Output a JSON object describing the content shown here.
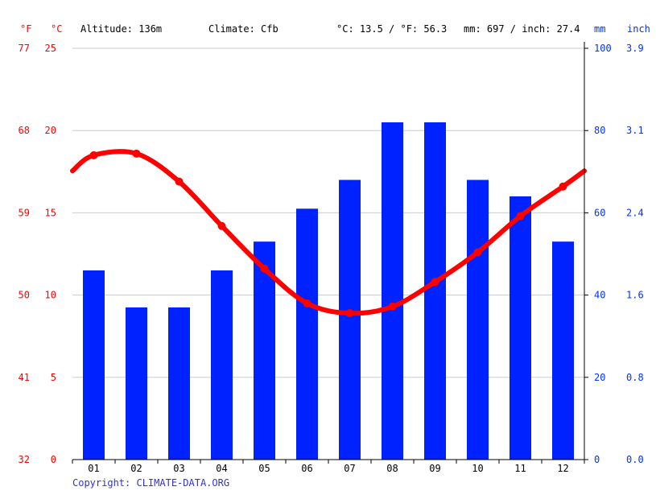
{
  "header": {
    "unit_f": "°F",
    "unit_c": "°C",
    "altitude": "Altitude: 136m",
    "climate": "Climate: Cfb",
    "temp_avg": "°C: 13.5 / °F: 56.3",
    "precip_total": "mm: 697 / inch: 27.4",
    "unit_mm": "mm",
    "unit_inch": "inch"
  },
  "footer": {
    "copyright": "Copyright: CLIMATE-DATA.ORG"
  },
  "colors": {
    "temperature": "#ff0000",
    "precipitation": "#0022ff",
    "grid": "#cccccc"
  },
  "chart_data": {
    "type": "bar",
    "categories": [
      "01",
      "02",
      "03",
      "04",
      "05",
      "06",
      "07",
      "08",
      "09",
      "10",
      "11",
      "12"
    ],
    "series": [
      {
        "type": "bar",
        "axis": "right",
        "values": [
          46,
          37,
          37,
          46,
          53,
          61,
          68,
          82,
          82,
          68,
          64,
          53
        ]
      },
      {
        "type": "line",
        "axis": "left",
        "values": [
          18.5,
          18.6,
          16.9,
          14.2,
          11.6,
          9.5,
          8.9,
          9.3,
          10.8,
          12.6,
          14.8,
          16.6
        ]
      }
    ],
    "y_left_f_ticks": [
      "32",
      "41",
      "50",
      "59",
      "68",
      "77"
    ],
    "y_left_c_ticks": [
      "0",
      "5",
      "10",
      "15",
      "20",
      "25"
    ],
    "y_left_range": [
      0,
      25
    ],
    "y_right_mm_ticks": [
      "0",
      "20",
      "40",
      "60",
      "80",
      "100"
    ],
    "y_right_inch_ticks": [
      "0.0",
      "0.8",
      "1.6",
      "2.4",
      "3.1",
      "3.9"
    ],
    "y_right_range": [
      0,
      100
    ],
    "grid": true
  }
}
